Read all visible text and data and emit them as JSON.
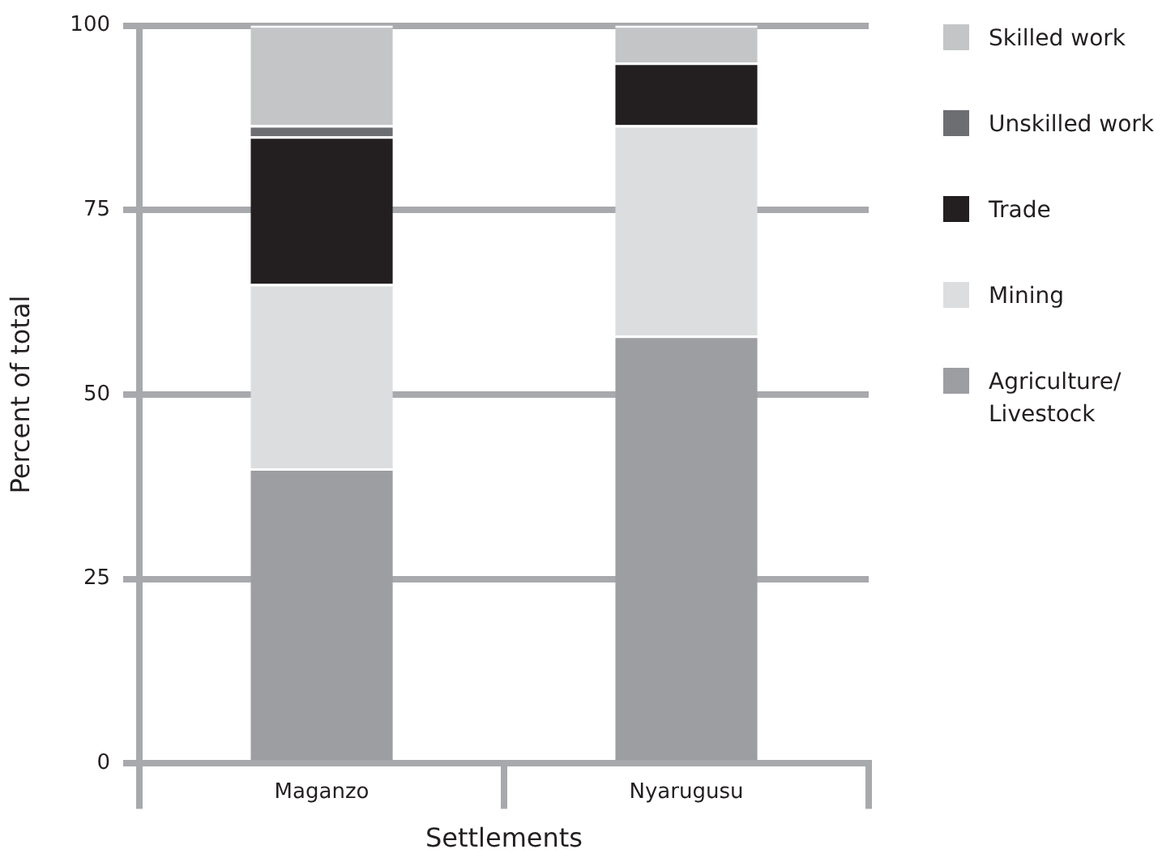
{
  "chart_data": {
    "type": "bar",
    "stacked": true,
    "xlabel": "Settlements",
    "ylabel": "Percent of total",
    "categories": [
      "Maganzo",
      "Nyarugusu"
    ],
    "series": [
      {
        "name": "Agriculture/ Livestock",
        "color": "#9d9ea2",
        "values": [
          40,
          58
        ]
      },
      {
        "name": "Mining",
        "color": "#dcdddf",
        "values": [
          25,
          28.5
        ]
      },
      {
        "name": "Trade",
        "color": "#231f20",
        "values": [
          20,
          8.5
        ]
      },
      {
        "name": "Unskilled work",
        "color": "#6d6e71",
        "values": [
          1.5,
          0
        ]
      },
      {
        "name": "Skilled work",
        "color": "#c4c5c7",
        "values": [
          13.5,
          5
        ]
      }
    ],
    "ylim": [
      0,
      100
    ],
    "yticks": [
      0,
      25,
      50,
      75,
      100
    ],
    "grid": "y",
    "legend": "right"
  }
}
